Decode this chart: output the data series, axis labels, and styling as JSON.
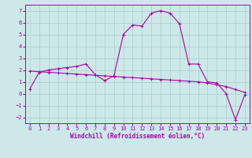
{
  "xlabel": "Windchill (Refroidissement éolien,°C)",
  "x": [
    0,
    1,
    2,
    3,
    4,
    5,
    6,
    7,
    8,
    9,
    10,
    11,
    12,
    13,
    14,
    15,
    16,
    17,
    18,
    19,
    20,
    21,
    22,
    23
  ],
  "y_curve": [
    0.4,
    1.8,
    2.0,
    2.1,
    2.2,
    2.3,
    2.5,
    1.6,
    1.1,
    1.5,
    5.0,
    5.8,
    5.7,
    6.8,
    7.0,
    6.8,
    5.9,
    2.5,
    2.5,
    1.0,
    0.9,
    0.0,
    -2.2,
    -0.1
  ],
  "y_line": [
    1.9,
    1.85,
    1.8,
    1.75,
    1.7,
    1.65,
    1.6,
    1.55,
    1.5,
    1.45,
    1.4,
    1.35,
    1.3,
    1.25,
    1.2,
    1.15,
    1.1,
    1.05,
    1.0,
    0.9,
    0.75,
    0.6,
    0.35,
    0.1
  ],
  "line_color": "#aa00aa",
  "bg_color": "#cce8e8",
  "grid_color": "#aacccc",
  "xlim": [
    -0.5,
    23.5
  ],
  "ylim": [
    -2.5,
    7.5
  ],
  "yticks": [
    -2,
    -1,
    0,
    1,
    2,
    3,
    4,
    5,
    6,
    7
  ],
  "xticks": [
    0,
    1,
    2,
    3,
    4,
    5,
    6,
    7,
    8,
    9,
    10,
    11,
    12,
    13,
    14,
    15,
    16,
    17,
    18,
    19,
    20,
    21,
    22,
    23
  ],
  "tick_fontsize": 5.0,
  "xlabel_fontsize": 5.5
}
